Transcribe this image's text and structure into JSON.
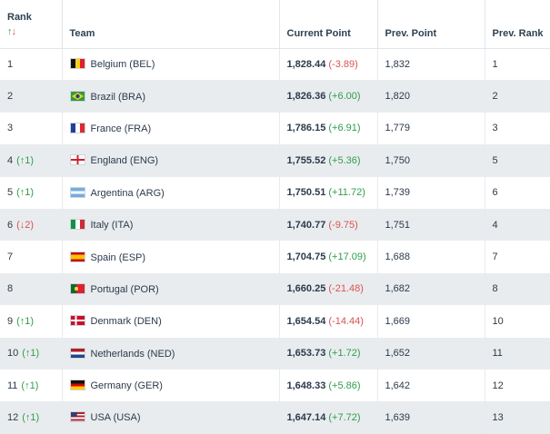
{
  "header": {
    "rank": "Rank",
    "rank_sort_up": "↑",
    "rank_sort_down": "↓",
    "team": "Team",
    "current_point": "Current Point",
    "prev_point": "Prev. Point",
    "prev_rank": "Prev. Rank"
  },
  "rows": [
    {
      "rank": "1",
      "move": "",
      "dir": "",
      "team": "Belgium (BEL)",
      "flag": "bel-flag-icon",
      "point": "1,828.44",
      "delta": "(-3.89)",
      "delta_dir": "neg",
      "prev_point": "1,832",
      "prev_rank": "1"
    },
    {
      "rank": "2",
      "move": "",
      "dir": "",
      "team": "Brazil (BRA)",
      "flag": "bra-flag-icon",
      "point": "1,826.36",
      "delta": "(+6.00)",
      "delta_dir": "pos",
      "prev_point": "1,820",
      "prev_rank": "2"
    },
    {
      "rank": "3",
      "move": "",
      "dir": "",
      "team": "France (FRA)",
      "flag": "fra-flag-icon",
      "point": "1,786.15",
      "delta": "(+6.91)",
      "delta_dir": "pos",
      "prev_point": "1,779",
      "prev_rank": "3"
    },
    {
      "rank": "4",
      "move": "(↑1)",
      "dir": "pos",
      "team": "England (ENG)",
      "flag": "eng-flag-icon",
      "point": "1,755.52",
      "delta": "(+5.36)",
      "delta_dir": "pos",
      "prev_point": "1,750",
      "prev_rank": "5"
    },
    {
      "rank": "5",
      "move": "(↑1)",
      "dir": "pos",
      "team": "Argentina (ARG)",
      "flag": "arg-flag-icon",
      "point": "1,750.51",
      "delta": "(+11.72)",
      "delta_dir": "pos",
      "prev_point": "1,739",
      "prev_rank": "6"
    },
    {
      "rank": "6",
      "move": "(↓2)",
      "dir": "neg",
      "team": "Italy (ITA)",
      "flag": "ita-flag-icon",
      "point": "1,740.77",
      "delta": "(-9.75)",
      "delta_dir": "neg",
      "prev_point": "1,751",
      "prev_rank": "4"
    },
    {
      "rank": "7",
      "move": "",
      "dir": "",
      "team": "Spain (ESP)",
      "flag": "esp-flag-icon",
      "point": "1,704.75",
      "delta": "(+17.09)",
      "delta_dir": "pos",
      "prev_point": "1,688",
      "prev_rank": "7"
    },
    {
      "rank": "8",
      "move": "",
      "dir": "",
      "team": "Portugal (POR)",
      "flag": "por-flag-icon",
      "point": "1,660.25",
      "delta": "(-21.48)",
      "delta_dir": "neg",
      "prev_point": "1,682",
      "prev_rank": "8"
    },
    {
      "rank": "9",
      "move": "(↑1)",
      "dir": "pos",
      "team": "Denmark (DEN)",
      "flag": "den-flag-icon",
      "point": "1,654.54",
      "delta": "(-14.44)",
      "delta_dir": "neg",
      "prev_point": "1,669",
      "prev_rank": "10"
    },
    {
      "rank": "10",
      "move": "(↑1)",
      "dir": "pos",
      "team": "Netherlands (NED)",
      "flag": "ned-flag-icon",
      "point": "1,653.73",
      "delta": "(+1.72)",
      "delta_dir": "pos",
      "prev_point": "1,652",
      "prev_rank": "11"
    },
    {
      "rank": "11",
      "move": "(↑1)",
      "dir": "pos",
      "team": "Germany (GER)",
      "flag": "ger-flag-icon",
      "point": "1,648.33",
      "delta": "(+5.86)",
      "delta_dir": "pos",
      "prev_point": "1,642",
      "prev_rank": "12"
    },
    {
      "rank": "12",
      "move": "(↑1)",
      "dir": "pos",
      "team": "USA (USA)",
      "flag": "usa-flag-icon",
      "point": "1,647.14",
      "delta": "(+7.72)",
      "delta_dir": "pos",
      "prev_point": "1,639",
      "prev_rank": "13"
    }
  ],
  "colors": {
    "positive": "#2e9e4a",
    "negative": "#d9534f",
    "stripe": "#e9ecef"
  }
}
